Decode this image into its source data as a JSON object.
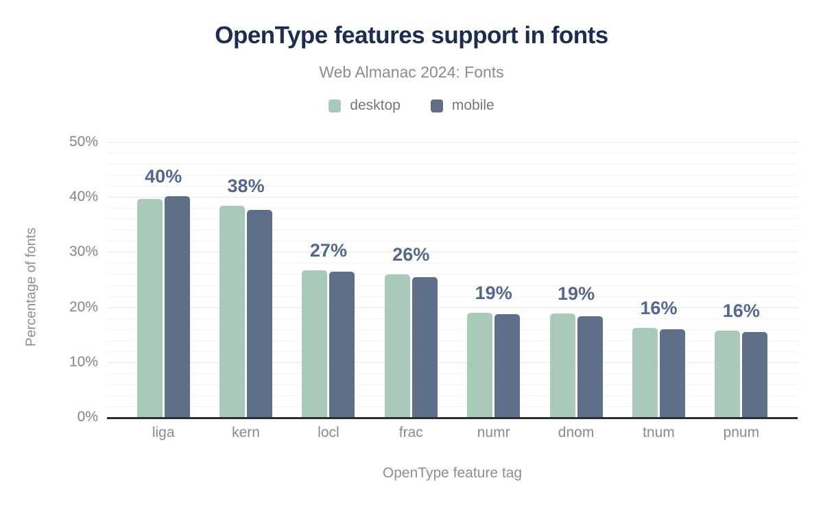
{
  "header": {
    "title": "OpenType features support in fonts",
    "subtitle": "Web Almanac 2024: Fonts"
  },
  "chart_data": {
    "type": "bar",
    "title": "OpenType features support in fonts",
    "subtitle": "Web Almanac 2024: Fonts",
    "categories": [
      "liga",
      "kern",
      "locl",
      "frac",
      "numr",
      "dnom",
      "tnum",
      "pnum"
    ],
    "series": [
      {
        "name": "desktop",
        "color": "#a9cab8",
        "values": [
          39.7,
          38.4,
          26.7,
          25.9,
          19.0,
          18.8,
          16.2,
          15.7
        ]
      },
      {
        "name": "mobile",
        "color": "#5f6e89",
        "values": [
          40.2,
          37.7,
          26.4,
          25.4,
          18.7,
          18.3,
          15.9,
          15.5
        ]
      }
    ],
    "bar_labels": [
      "40%",
      "38%",
      "27%",
      "26%",
      "19%",
      "19%",
      "16%",
      "16%"
    ],
    "xlabel": "OpenType feature tag",
    "ylabel": "Percentage of fonts",
    "ylim": [
      0,
      50
    ],
    "yticks": {
      "values": [
        0,
        10,
        20,
        30,
        40,
        50
      ],
      "labels": [
        "0%",
        "10%",
        "20%",
        "30%",
        "40%",
        "50%"
      ]
    },
    "grid": {
      "major_step": 10,
      "minor_step": 2,
      "shown": true
    },
    "legend_position": "top",
    "value_label_color": "#54678f",
    "axis_line_color": "#2d2d2d"
  }
}
